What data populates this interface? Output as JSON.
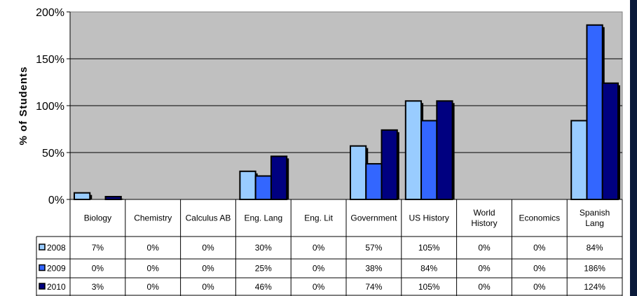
{
  "colors": {
    "plot_bg": "#c0c0c0",
    "series": [
      "#99ccff",
      "#3366ff",
      "#000080"
    ],
    "edge": "#000000",
    "shadow": "#000000",
    "strip": "#0a1a3a"
  },
  "chart_data": {
    "type": "bar",
    "ylabel": "% of Students",
    "ylim": [
      0,
      200
    ],
    "yticks": [
      0,
      50,
      100,
      150,
      200
    ],
    "ytick_labels": [
      "0%",
      "50%",
      "100%",
      "150%",
      "200%"
    ],
    "grid": true,
    "legend": "data-table",
    "categories": [
      [
        "Biology"
      ],
      [
        "Chemistry"
      ],
      [
        "Calculus AB"
      ],
      [
        "Eng. Lang"
      ],
      [
        "Eng. Lit"
      ],
      [
        "Government"
      ],
      [
        "US History"
      ],
      [
        "World",
        "History"
      ],
      [
        "Economics"
      ],
      [
        "Spanish",
        "Lang"
      ]
    ],
    "series": [
      {
        "name": "2008",
        "values": [
          7,
          0,
          0,
          30,
          0,
          57,
          105,
          0,
          0,
          84
        ],
        "labels": [
          "7%",
          "0%",
          "0%",
          "30%",
          "0%",
          "57%",
          "105%",
          "0%",
          "0%",
          "84%"
        ]
      },
      {
        "name": "2009",
        "values": [
          0,
          0,
          0,
          25,
          0,
          38,
          84,
          0,
          0,
          186
        ],
        "labels": [
          "0%",
          "0%",
          "0%",
          "25%",
          "0%",
          "38%",
          "84%",
          "0%",
          "0%",
          "186%"
        ]
      },
      {
        "name": "2010",
        "values": [
          3,
          0,
          0,
          46,
          0,
          74,
          105,
          0,
          0,
          124
        ],
        "labels": [
          "3%",
          "0%",
          "0%",
          "46%",
          "0%",
          "74%",
          "105%",
          "0%",
          "0%",
          "124%"
        ]
      }
    ]
  }
}
